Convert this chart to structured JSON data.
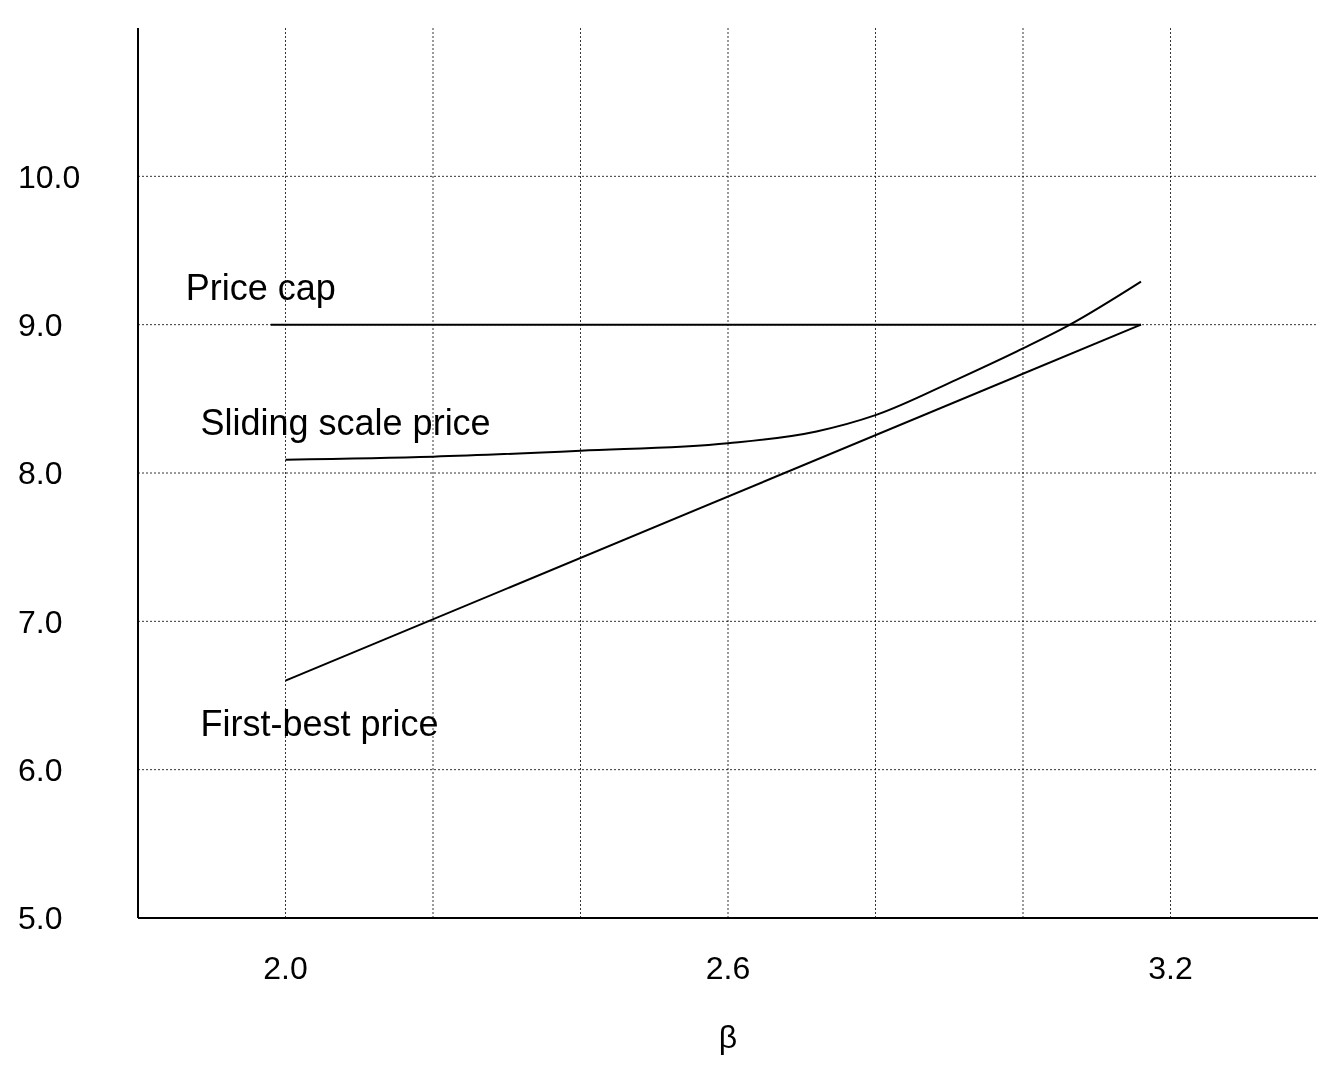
{
  "chart_data": {
    "type": "line",
    "xlabel": "β",
    "xlim": [
      1.8,
      3.4
    ],
    "xticks": [
      {
        "value": 2.0,
        "label": "2.0"
      },
      {
        "value": 2.2,
        "label": null
      },
      {
        "value": 2.4,
        "label": null
      },
      {
        "value": 2.6,
        "label": "2.6"
      },
      {
        "value": 2.8,
        "label": null
      },
      {
        "value": 3.0,
        "label": null
      },
      {
        "value": 3.2,
        "label": "3.2"
      }
    ],
    "ylim": [
      5,
      11
    ],
    "yticks": [
      {
        "value": 5,
        "label": "5.0"
      },
      {
        "value": 6,
        "label": "6.0"
      },
      {
        "value": 7,
        "label": "7.0"
      },
      {
        "value": 8,
        "label": "8.0"
      },
      {
        "value": 9,
        "label": "9.0"
      },
      {
        "value": 10,
        "label": "10.0"
      }
    ],
    "grid": true,
    "legend": false,
    "marker": "none",
    "line_style": "solid",
    "series": [
      {
        "name": "Price cap",
        "color": "#000000",
        "x": [
          1.98,
          3.16
        ],
        "values": [
          9.0,
          9.0
        ]
      },
      {
        "name": "Sliding scale price",
        "color": "#000000",
        "x": [
          2.0,
          2.2,
          2.4,
          2.6,
          2.72,
          2.8,
          2.91,
          3.0,
          3.06,
          3.16
        ],
        "values": [
          8.09,
          8.11,
          8.15,
          8.2,
          8.28,
          8.39,
          8.63,
          8.84,
          8.99,
          9.29
        ]
      },
      {
        "name": "First-best price",
        "color": "#000000",
        "x": [
          2.0,
          3.16
        ],
        "values": [
          6.6,
          9.0
        ]
      }
    ]
  }
}
